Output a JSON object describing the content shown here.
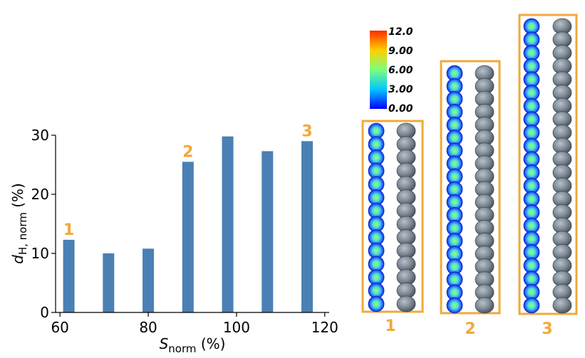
{
  "chart_data": {
    "type": "bar",
    "x": [
      62,
      71,
      80,
      89,
      98,
      107,
      116
    ],
    "values": [
      12.3,
      10.0,
      10.8,
      25.5,
      29.8,
      27.3,
      29.0
    ],
    "xlim": [
      59,
      121
    ],
    "ylim": [
      0,
      30
    ],
    "xticks": [
      "60",
      "80",
      "100",
      "120"
    ],
    "yticks": [
      "0",
      "10",
      "20",
      "30"
    ],
    "xlabel": {
      "main": "S",
      "sub": "norm",
      "unit": "(%)"
    },
    "ylabel": {
      "main": "d",
      "sub": "H, norm",
      "unit": "(%)"
    },
    "bar_color": "#4a80b4",
    "annotations": [
      {
        "label": "1",
        "x": 62,
        "value": 12.3
      },
      {
        "label": "2",
        "x": 89,
        "value": 25.5
      },
      {
        "label": "3",
        "x": 116,
        "value": 29.0
      }
    ],
    "grid": false
  },
  "colorbar": {
    "ticks": [
      "12.0",
      "9.00",
      "6.00",
      "3.00",
      "0.00"
    ],
    "range": [
      0,
      12
    ]
  },
  "panels": [
    {
      "label": "1",
      "sphere_count": 14
    },
    {
      "label": "2",
      "sphere_count": 19
    },
    {
      "label": "3",
      "sphere_count": 22
    }
  ],
  "colors": {
    "accent": "#f0a93b",
    "gray_chain": "#6f7b86",
    "bar": "#4a80b4"
  }
}
